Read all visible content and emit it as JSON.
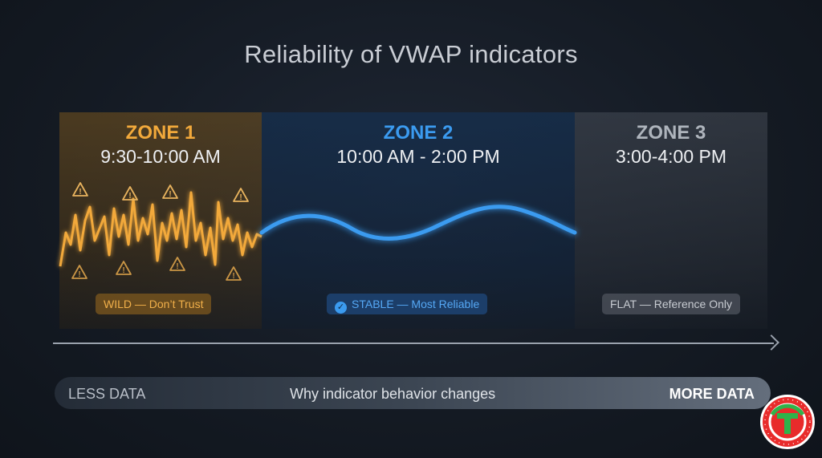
{
  "title": "Reliability of VWAP indicators",
  "zones": [
    {
      "name": "ZONE 1",
      "time": "9:30-10:00 AM",
      "label": "WILD — Don’t Trust",
      "color": "#f2a93b"
    },
    {
      "name": "ZONE 2",
      "time": "10:00 AM - 2:00 PM",
      "label": "STABLE — Most Reliable",
      "color": "#3b9bf0"
    },
    {
      "name": "ZONE 3",
      "time": "3:00-4:00 PM",
      "label": "FLAT — Reference Only",
      "color": "#c8ccd2"
    }
  ],
  "bar": {
    "left": "LESS DATA",
    "middle": "Why indicator behavior changes",
    "right": "MORE DATA"
  },
  "icons": {
    "warning": "warning-triangle-icon",
    "check": "check-circle-icon",
    "logo": "brand-logo-icon"
  },
  "logo_text": "T",
  "colors": {
    "zone1": "#f2a93b",
    "zone2": "#3b9bf0",
    "zone3": "#c8ccd2",
    "logo_red": "#e82b2b",
    "logo_green": "#2fb34a"
  }
}
